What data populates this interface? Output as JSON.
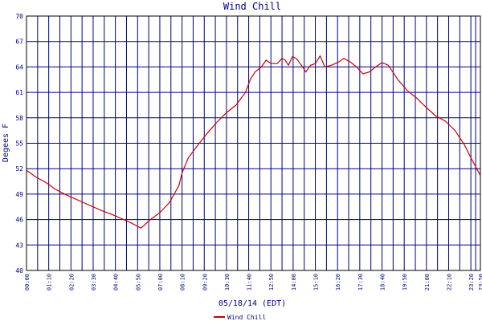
{
  "chart_data": {
    "type": "line",
    "title": "Wind Chill",
    "x_label": "05/18/14 (EDT)",
    "y_label": "Degees F",
    "xlim": [
      "00:00",
      "23:50"
    ],
    "xticks": [
      "00:00",
      "01:10",
      "02:20",
      "03:30",
      "04:40",
      "05:50",
      "07:00",
      "08:10",
      "09:20",
      "10:30",
      "11:40",
      "12:50",
      "14:00",
      "15:10",
      "16:20",
      "17:30",
      "18:40",
      "19:50",
      "21:00",
      "22:10",
      "23:20",
      "23:50"
    ],
    "ylim": [
      40,
      70
    ],
    "yticks": [
      40,
      43,
      46,
      49,
      52,
      55,
      58,
      61,
      64,
      67,
      70
    ],
    "grid": true,
    "x": [
      "00:00",
      "00:30",
      "01:00",
      "01:30",
      "02:00",
      "02:30",
      "03:00",
      "03:30",
      "04:00",
      "04:30",
      "05:00",
      "05:30",
      "05:50",
      "06:00",
      "06:10",
      "06:30",
      "07:00",
      "07:30",
      "08:00",
      "08:10",
      "08:30",
      "09:00",
      "09:30",
      "10:00",
      "10:30",
      "11:00",
      "11:30",
      "11:45",
      "12:00",
      "12:20",
      "12:35",
      "12:50",
      "13:10",
      "13:25",
      "13:35",
      "13:45",
      "13:58",
      "14:10",
      "14:30",
      "14:40",
      "14:55",
      "15:10",
      "15:25",
      "15:40",
      "16:00",
      "16:20",
      "16:40",
      "17:00",
      "17:20",
      "17:40",
      "18:00",
      "18:20",
      "18:40",
      "19:00",
      "19:30",
      "20:00",
      "20:30",
      "21:00",
      "21:30",
      "22:00",
      "22:30",
      "23:00",
      "23:20",
      "23:50"
    ],
    "series": [
      {
        "name": "Wind Chill",
        "color": "#cc0000",
        "values": [
          51.8,
          51.0,
          50.4,
          49.6,
          49.0,
          48.5,
          48.0,
          47.5,
          47.0,
          46.6,
          46.1,
          45.6,
          45.2,
          45.0,
          45.3,
          46.0,
          46.8,
          48.0,
          50.0,
          51.5,
          53.3,
          54.8,
          56.2,
          57.5,
          58.6,
          59.5,
          61.0,
          62.5,
          63.4,
          64.0,
          64.8,
          64.4,
          64.4,
          65.0,
          64.8,
          64.2,
          65.2,
          65.0,
          64.0,
          63.4,
          64.2,
          64.4,
          65.3,
          64.0,
          64.2,
          64.5,
          65.0,
          64.6,
          64.0,
          63.2,
          63.4,
          64.0,
          64.5,
          64.2,
          62.5,
          61.2,
          60.3,
          59.2,
          58.2,
          57.6,
          56.5,
          54.8,
          53.3,
          51.2
        ]
      }
    ]
  }
}
